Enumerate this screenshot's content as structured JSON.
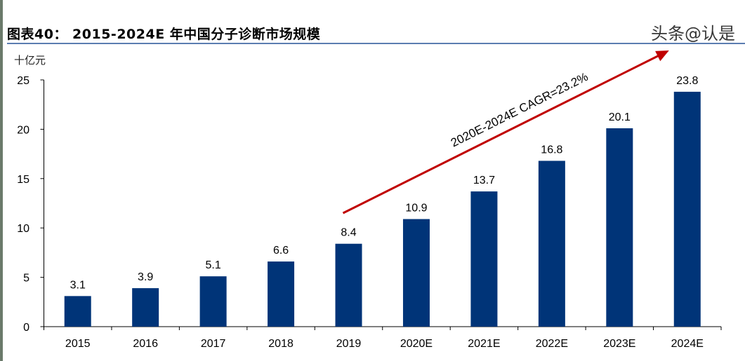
{
  "chart_data": {
    "type": "bar",
    "title": "图表40：  2015-2024E 年中国分子诊断市场规模",
    "ylabel": "十亿元",
    "categories": [
      "2015",
      "2016",
      "2017",
      "2018",
      "2019",
      "2020E",
      "2021E",
      "2022E",
      "2023E",
      "2024E"
    ],
    "values": [
      3.1,
      3.9,
      5.1,
      6.6,
      8.4,
      10.9,
      13.7,
      16.8,
      20.1,
      23.8
    ],
    "data_labels": [
      "3.1",
      "3.9",
      "5.1",
      "6.6",
      "8.4",
      "10.9",
      "13.7",
      "16.8",
      "20.1",
      "23.8"
    ],
    "ylim": [
      0,
      25
    ],
    "yticks": [
      "0",
      "5",
      "10",
      "15",
      "20",
      "25"
    ],
    "grid": false,
    "bar_color": "#003478",
    "annotation": {
      "text": "2020E-2024E CAGR=23.2%",
      "color": "#c00000",
      "from_category": "2019",
      "to_category": "2024E"
    }
  },
  "watermark": "头条@认是"
}
